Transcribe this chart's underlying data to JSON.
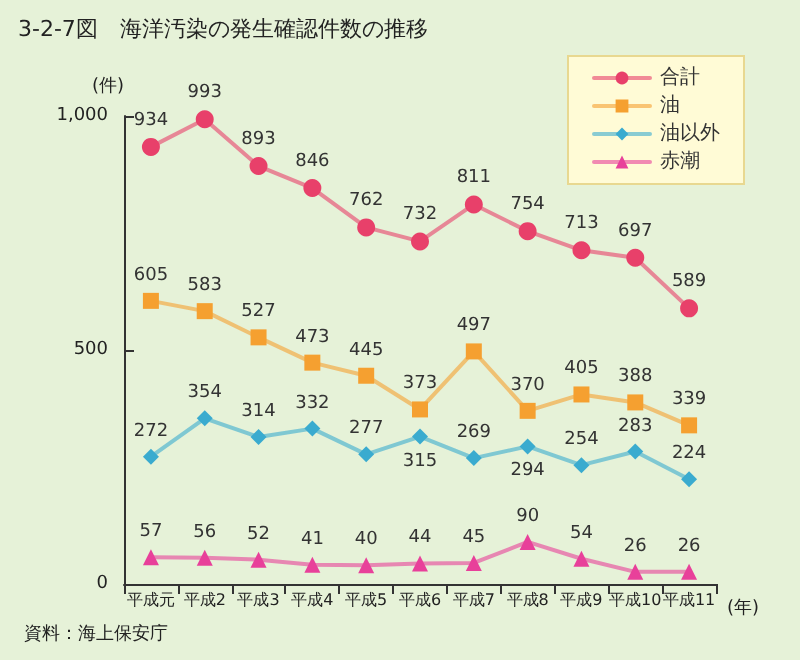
{
  "chart_data": {
    "type": "line",
    "title": "3-2-7図　海洋汚染の発生確認件数の推移",
    "ylabel": "(件)",
    "xlabel": "(年)",
    "annotations": [
      "資料：海上保安庁"
    ],
    "categories": [
      "平成元",
      "平成2",
      "平成3",
      "平成4",
      "平成5",
      "平成6",
      "平成7",
      "平成8",
      "平成9",
      "平成10",
      "平成11"
    ],
    "series": [
      {
        "name": "合計",
        "color": "#e8406a",
        "marker": "circle",
        "values": [
          934,
          993,
          893,
          846,
          762,
          732,
          811,
          754,
          713,
          697,
          589
        ]
      },
      {
        "name": "油",
        "color": "#f5a030",
        "marker": "square",
        "values": [
          605,
          583,
          527,
          473,
          445,
          373,
          497,
          370,
          405,
          388,
          339
        ]
      },
      {
        "name": "油以外",
        "color": "#3aabcf",
        "marker": "diamond",
        "values": [
          272,
          354,
          314,
          332,
          277,
          315,
          269,
          294,
          254,
          283,
          224
        ]
      },
      {
        "name": "赤潮",
        "color": "#e8409a",
        "marker": "triangle",
        "values": [
          57,
          56,
          52,
          41,
          40,
          44,
          45,
          90,
          54,
          26,
          26
        ]
      }
    ],
    "ylim": [
      0,
      1000
    ],
    "yticks": [
      0,
      500,
      {
        "value": 1000,
        "label": "1,000"
      }
    ],
    "grid": false,
    "legend": "top right",
    "data_labels": true
  }
}
